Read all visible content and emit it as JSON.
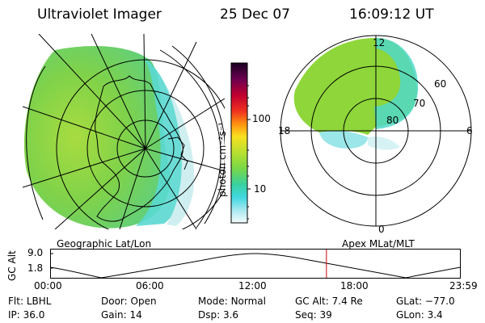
{
  "header": {
    "title": "Ultraviolet Imager",
    "date": "25 Dec 07",
    "time": "16:09:12 UT"
  },
  "colorbar": {
    "unit_label": "photon cm⁻²s⁻¹",
    "ticks": [
      "100",
      "10"
    ]
  },
  "polar_labels": {
    "mlt": [
      "12",
      "18",
      "6",
      "0"
    ],
    "mlat": [
      "60",
      "70",
      "80"
    ]
  },
  "left_map_caption": "Geographic Lat/Lon",
  "right_map_caption": "Apex MLat/MLT",
  "altitude_panel": {
    "y_axis_label": "GC Alt",
    "y_ticks": [
      "9.0",
      "1.8"
    ],
    "x_ticks": [
      "00:00",
      "06:00",
      "12:00",
      "18:00",
      "23:59"
    ],
    "marker_time_hours": 16.15
  },
  "info_rows": [
    [
      {
        "label": "Flt:",
        "value": "LBHL"
      },
      {
        "label": "Door:",
        "value": "Open"
      },
      {
        "label": "Mode:",
        "value": "Normal"
      },
      {
        "label": "GC Alt:",
        "value": "7.4 Re"
      },
      {
        "label": "GLat:",
        "value": "−77.0"
      }
    ],
    [
      {
        "label": "IP:",
        "value": "36.0"
      },
      {
        "label": "Gain:",
        "value": "14"
      },
      {
        "label": "Dsp:",
        "value": "3.6"
      },
      {
        "label": "Seq:",
        "value": "39"
      },
      {
        "label": "GLon:",
        "value": "3.4"
      }
    ]
  ],
  "colors": {
    "marker": "#cc0000",
    "green": "#8ed63a",
    "cyan": "#48d8d8"
  }
}
